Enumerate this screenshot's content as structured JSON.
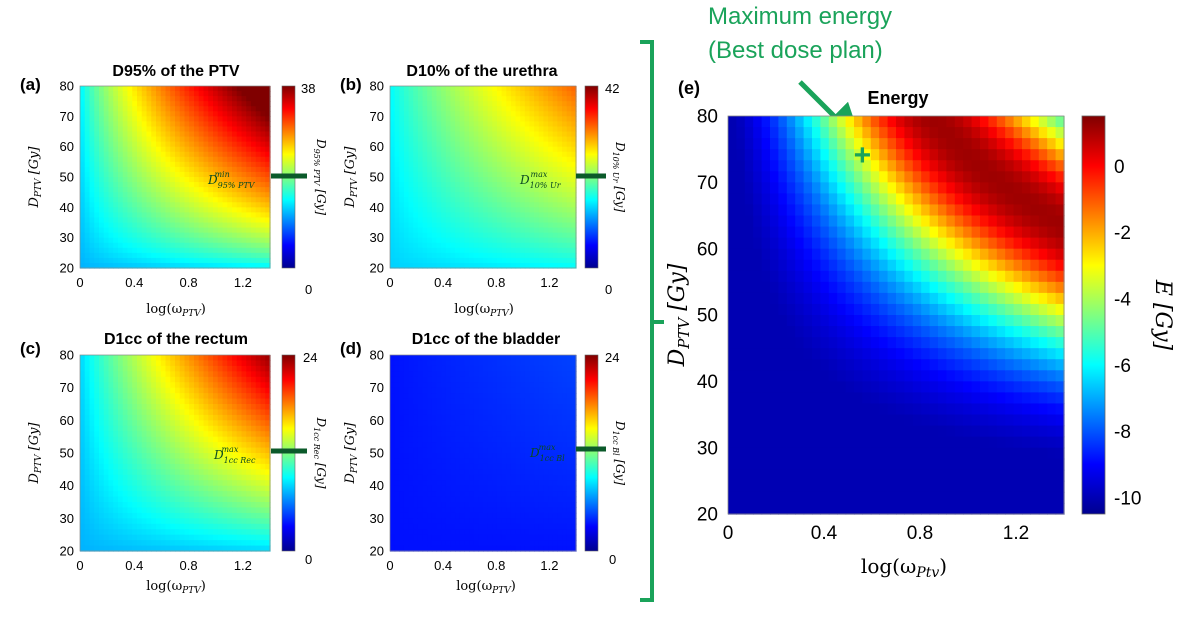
{
  "annotation": {
    "line1": "Maximum energy",
    "line2": "(Best dose plan)",
    "color": "#1aa35a"
  },
  "chart_data": [
    {
      "type": "heatmap",
      "panel": "(a)",
      "title": "D95% of the PTV",
      "xlabel": "log(ω_PTV)",
      "ylabel": "D_PTV [Gy]",
      "xlim": [
        0,
        1.4
      ],
      "ylim": [
        20,
        80
      ],
      "xticks": [
        "0",
        "0.4",
        "0.8",
        "1.2"
      ],
      "yticks": [
        "20",
        "30",
        "40",
        "50",
        "60",
        "70",
        "80"
      ],
      "colorbar": {
        "min": 0,
        "max": 38,
        "min_label": "0",
        "max_label": "38",
        "label": "D95% PTV [Gy]"
      },
      "threshold_label": "D^min 95% PTV",
      "threshold_value_fraction": 0.58,
      "data_summary": "Dose increases with both D_PTV and log(ω_PTV); maximum (~38 Gy) at top-right, near 0 at bottom-left."
    },
    {
      "type": "heatmap",
      "panel": "(b)",
      "title": "D10% of the urethra",
      "xlabel": "log(ω_PTV)",
      "ylabel": "D_PTV [Gy]",
      "xlim": [
        0,
        1.4
      ],
      "ylim": [
        20,
        80
      ],
      "xticks": [
        "0",
        "0.4",
        "0.8",
        "1.2"
      ],
      "yticks": [
        "20",
        "30",
        "40",
        "50",
        "60",
        "70",
        "80"
      ],
      "colorbar": {
        "min": 0,
        "max": 42,
        "min_label": "0",
        "max_label": "42",
        "label": "D10% Ur [Gy]"
      },
      "threshold_label": "D^max 10% Ur",
      "threshold_value_fraction": 0.58,
      "data_summary": "Dose rises toward top-right reaching mid-high values (~30 Gy)."
    },
    {
      "type": "heatmap",
      "panel": "(c)",
      "title": "D1cc of the rectum",
      "xlabel": "log(ω_PTV)",
      "ylabel": "D_PTV [Gy]",
      "xlim": [
        0,
        1.4
      ],
      "ylim": [
        20,
        80
      ],
      "xticks": [
        "0",
        "0.4",
        "0.8",
        "1.2"
      ],
      "yticks": [
        "20",
        "30",
        "40",
        "50",
        "60",
        "70",
        "80"
      ],
      "colorbar": {
        "min": 0,
        "max": 24,
        "min_label": "0",
        "max_label": "24",
        "label": "D1cc Rec [Gy]"
      },
      "threshold_label": "D^max 1cc Rec",
      "threshold_value_fraction": 0.55,
      "data_summary": "Dose increases toward top-right, maximum ~20 Gy."
    },
    {
      "type": "heatmap",
      "panel": "(d)",
      "title": "D1cc of the bladder",
      "xlabel": "log(ω_PTV)",
      "ylabel": "D_PTV [Gy]",
      "xlim": [
        0,
        1.4
      ],
      "ylim": [
        20,
        80
      ],
      "xticks": [
        "0",
        "0.4",
        "0.8",
        "1.2"
      ],
      "yticks": [
        "20",
        "30",
        "40",
        "50",
        "60",
        "70",
        "80"
      ],
      "colorbar": {
        "min": 0,
        "max": 24,
        "min_label": "0",
        "max_label": "24",
        "label": "D1cc Bl [Gy]"
      },
      "threshold_label": "D^max 1cc Bl",
      "threshold_value_fraction": 0.55,
      "data_summary": "Uniformly low dose (~4–6 Gy) across the whole domain."
    },
    {
      "type": "heatmap",
      "panel": "(e)",
      "title": "Energy",
      "xlabel": "log(ω_Ptv)",
      "ylabel": "D_PTV [Gy]",
      "xlim": [
        0,
        1.4
      ],
      "ylim": [
        20,
        80
      ],
      "xticks": [
        "0",
        "0.4",
        "0.8",
        "1.2"
      ],
      "yticks": [
        "20",
        "30",
        "40",
        "50",
        "60",
        "70",
        "80"
      ],
      "colorbar": {
        "min": -10.5,
        "max": 1.5,
        "ticks": [
          "0",
          "-2",
          "-4",
          "-6",
          "-8",
          "-10"
        ],
        "label": "E [Gy]"
      },
      "marker": {
        "x": 0.56,
        "y": 74,
        "symbol": "+"
      },
      "data_summary": "Energy peaks (~1 Gy) along a band from top-center to right-middle; minimum (-10 Gy) at bottom-left."
    }
  ]
}
